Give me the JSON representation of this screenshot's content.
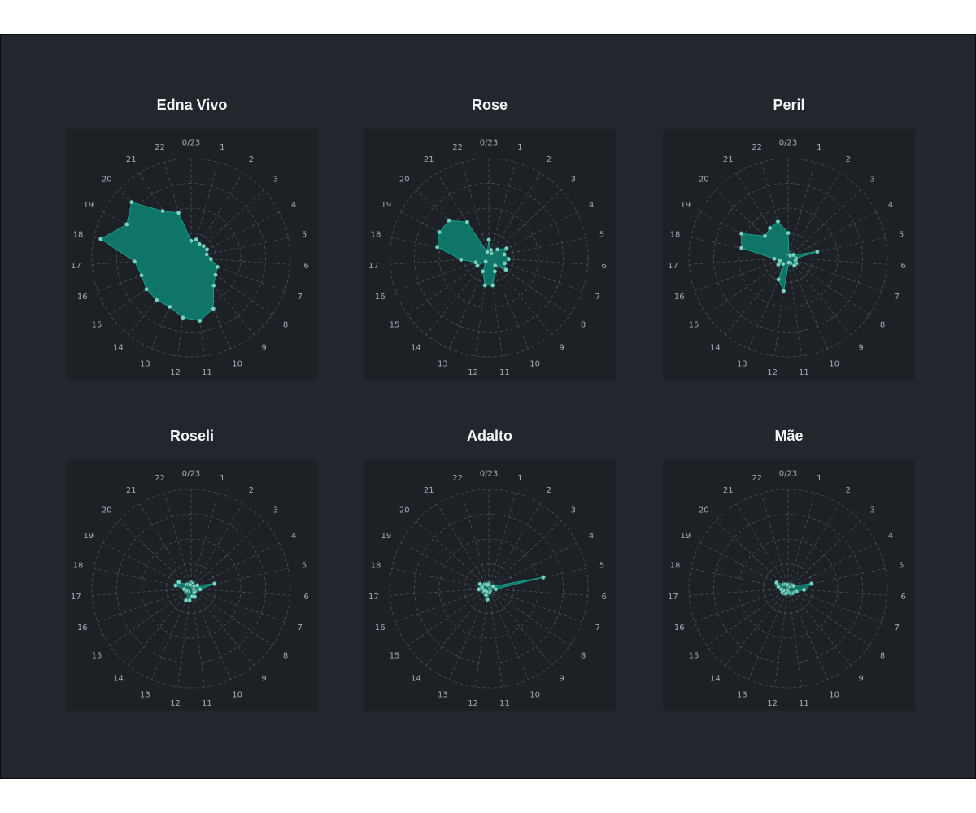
{
  "chart_data": {
    "type": "radar",
    "categories": [
      "0/23",
      "1",
      "2",
      "3",
      "4",
      "5",
      "6",
      "7",
      "8",
      "9",
      "10",
      "11",
      "12",
      "13",
      "14",
      "15",
      "16",
      "17",
      "18",
      "19",
      "20",
      "21",
      "22"
    ],
    "rlim": [
      0,
      1
    ],
    "grid": true,
    "colors": {
      "fill": "#0e7a6c",
      "stroke": "#15a08c",
      "point": "#7fd1c2",
      "grid": "#4a5159",
      "label": "#a3abb3"
    },
    "panels": [
      {
        "title": "Edna Vivo",
        "values": [
          0.17,
          0.19,
          0.16,
          0.17,
          0.18,
          0.16,
          0.2,
          0.28,
          0.3,
          0.36,
          0.56,
          0.64,
          0.61,
          0.54,
          0.55,
          0.55,
          0.53,
          0.57,
          0.93,
          0.73,
          0.82,
          0.55,
          0.47
        ]
      },
      {
        "title": "Rose",
        "values": [
          0.18,
          0.08,
          0.05,
          0.12,
          0.2,
          0.16,
          0.2,
          0.17,
          0.21,
          0.1,
          0.15,
          0.28,
          0.28,
          0.15,
          0.05,
          0.14,
          0.14,
          0.28,
          0.53,
          0.56,
          0.55,
          0.42,
          0.06
        ]
      },
      {
        "title": "Peril",
        "values": [
          0.25,
          0.03,
          0.03,
          0.03,
          0.06,
          0.3,
          0.08,
          0.08,
          0.1,
          0.1,
          0.06,
          0.05,
          0.34,
          0.24,
          0.08,
          0.12,
          0.09,
          0.14,
          0.48,
          0.53,
          0.32,
          0.35,
          0.38
        ]
      },
      {
        "title": "Roseli",
        "values": [
          0.06,
          0.05,
          0.03,
          0.04,
          0.07,
          0.24,
          0.09,
          0.03,
          0.05,
          0.05,
          0.09,
          0.08,
          0.12,
          0.13,
          0.04,
          0.06,
          0.05,
          0.07,
          0.16,
          0.14,
          0.06,
          0.05,
          0.04
        ]
      },
      {
        "title": "Adalto",
        "values": [
          0.05,
          0.02,
          0.03,
          0.03,
          0.05,
          0.56,
          0.07,
          0.01,
          0.02,
          0.02,
          0.03,
          0.04,
          0.11,
          0.07,
          0.04,
          0.06,
          0.05,
          0.1,
          0.07,
          0.1,
          0.06,
          0.05,
          0.04
        ]
      },
      {
        "title": "Mãe",
        "values": [
          0.04,
          0.02,
          0.03,
          0.05,
          0.06,
          0.24,
          0.16,
          0.09,
          0.07,
          0.06,
          0.05,
          0.04,
          0.03,
          0.05,
          0.06,
          0.07,
          0.05,
          0.07,
          0.1,
          0.13,
          0.06,
          0.05,
          0.04
        ]
      }
    ]
  }
}
